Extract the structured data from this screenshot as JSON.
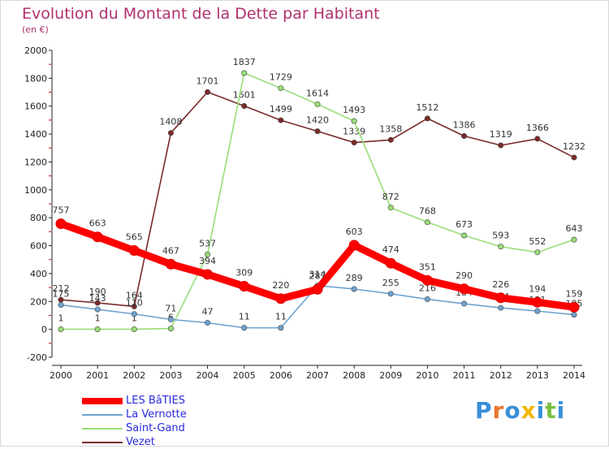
{
  "header": {
    "title": "Evolution du Montant de la Dette par Habitant",
    "subtitle": "(en €)"
  },
  "brand": {
    "name": "Proxiti"
  },
  "colors": {
    "title": "#b0306f",
    "legend_text": "#2a2adc",
    "axis": "#222222"
  },
  "chart_data": {
    "type": "line",
    "title": "Evolution du Montant de la Dette par Habitant",
    "subtitle": "(en €)",
    "xlabel": "",
    "ylabel": "",
    "categories": [
      "2000",
      "2001",
      "2002",
      "2003",
      "2004",
      "2005",
      "2006",
      "2007",
      "2008",
      "2009",
      "2010",
      "2011",
      "2012",
      "2013",
      "2014"
    ],
    "ylim": [
      -200,
      2000
    ],
    "yticks": [
      -200,
      0,
      200,
      400,
      600,
      800,
      1000,
      1200,
      1400,
      1600,
      1800,
      2000
    ],
    "grid": false,
    "legend_position": "bottom-left",
    "series": [
      {
        "name": "LES BâTIES",
        "color": "#ff0000",
        "values": [
          757,
          663,
          565,
          467,
          394,
          309,
          220,
          287,
          603,
          474,
          351,
          290,
          226,
          194,
          159
        ]
      },
      {
        "name": "La Vernotte",
        "color": "#6ea3d0",
        "values": [
          175,
          143,
          110,
          71,
          47,
          11,
          11,
          314,
          289,
          255,
          216,
          184,
          154,
          131,
          105
        ]
      },
      {
        "name": "Saint-Gand",
        "color": "#99dd77",
        "values": [
          1,
          1,
          1,
          6,
          537,
          1837,
          1729,
          1614,
          1493,
          872,
          768,
          673,
          593,
          552,
          643
        ]
      },
      {
        "name": "Vezet",
        "color": "#7a2a2a",
        "values": [
          212,
          190,
          164,
          1408,
          1701,
          1601,
          1499,
          1420,
          1339,
          1358,
          1512,
          1386,
          1319,
          1366,
          1232
        ]
      }
    ]
  }
}
